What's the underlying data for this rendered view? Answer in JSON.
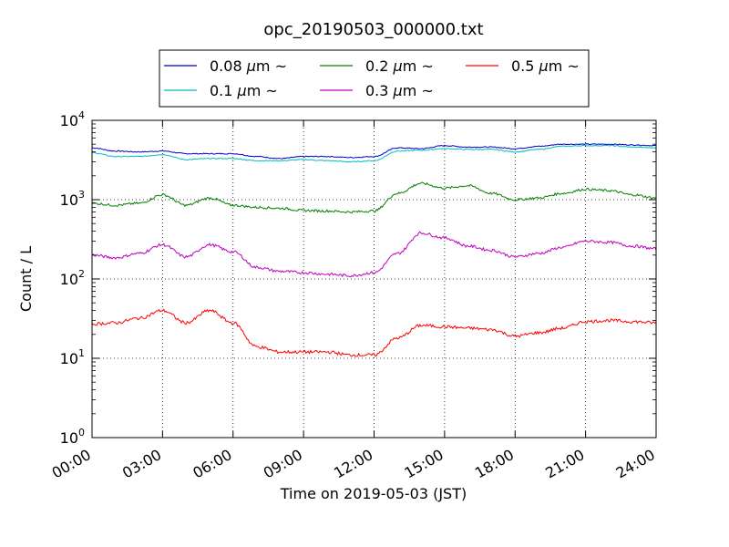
{
  "chart_data": {
    "type": "line",
    "title": "opc_20190503_000000.txt",
    "xlabel": "Time on 2019-05-03 (JST)",
    "ylabel": "Count / L",
    "xlim": [
      0,
      24
    ],
    "ylim": [
      1,
      10000
    ],
    "yscale": "log",
    "grid": true,
    "legend_position": "top",
    "x_ticks": [
      "00:00",
      "03:00",
      "06:00",
      "09:00",
      "12:00",
      "15:00",
      "18:00",
      "21:00",
      "24:00"
    ],
    "y_ticks": [
      {
        "base": "10",
        "exp": "0"
      },
      {
        "base": "10",
        "exp": "1"
      },
      {
        "base": "10",
        "exp": "2"
      },
      {
        "base": "10",
        "exp": "3"
      },
      {
        "base": "10",
        "exp": "4"
      }
    ],
    "x": [
      0,
      1,
      2,
      3,
      4,
      5,
      6,
      7,
      8,
      9,
      10,
      11,
      12,
      13,
      14,
      15,
      16,
      17,
      18,
      19,
      20,
      21,
      22,
      23,
      24
    ],
    "series": [
      {
        "name": "0.08",
        "unit": "μm",
        "suffix": "~",
        "color": "#0000cc",
        "values": [
          4500,
          4100,
          4000,
          4100,
          3800,
          3800,
          3800,
          3500,
          3300,
          3500,
          3500,
          3400,
          3500,
          4500,
          4400,
          4800,
          4600,
          4600,
          4400,
          4700,
          5000,
          5000,
          5000,
          4900,
          4800
        ]
      },
      {
        "name": "0.1",
        "unit": "μm",
        "suffix": "~",
        "color": "#00bfbf",
        "values": [
          3900,
          3500,
          3500,
          3700,
          3200,
          3300,
          3300,
          3100,
          3100,
          3200,
          3100,
          3000,
          3100,
          4100,
          4200,
          4400,
          4300,
          4300,
          4000,
          4300,
          4700,
          4800,
          4800,
          4600,
          4500
        ]
      },
      {
        "name": "0.2",
        "unit": "μm",
        "suffix": "~",
        "color": "#008000",
        "values": [
          900,
          850,
          900,
          1150,
          850,
          1050,
          850,
          800,
          780,
          730,
          720,
          700,
          720,
          1200,
          1600,
          1400,
          1500,
          1200,
          1000,
          1050,
          1200,
          1350,
          1300,
          1150,
          1050
        ]
      },
      {
        "name": "0.3",
        "unit": "μm",
        "suffix": "~",
        "color": "#bf00bf",
        "values": [
          200,
          185,
          210,
          270,
          190,
          270,
          220,
          140,
          125,
          120,
          115,
          110,
          120,
          210,
          380,
          330,
          260,
          230,
          190,
          210,
          250,
          300,
          290,
          260,
          240
        ]
      },
      {
        "name": "0.5",
        "unit": "μm",
        "suffix": "~",
        "color": "#ff0000",
        "values": [
          27,
          28,
          32,
          40,
          28,
          40,
          28,
          14,
          12,
          12,
          12,
          11,
          11,
          18,
          26,
          25,
          24,
          23,
          19,
          21,
          24,
          29,
          30,
          29,
          28
        ]
      }
    ]
  }
}
